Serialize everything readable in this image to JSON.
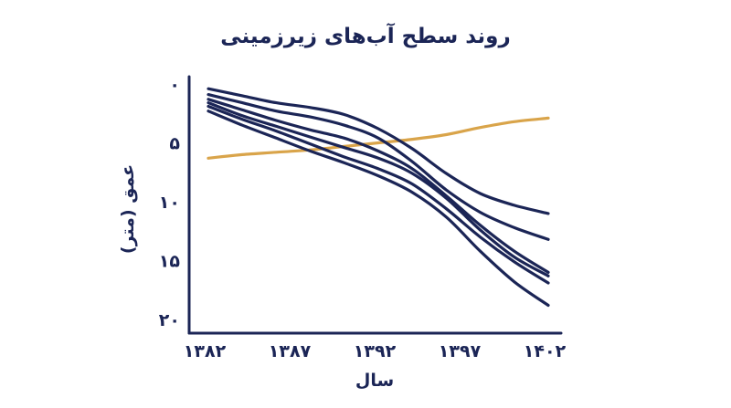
{
  "chart_data": {
    "type": "line",
    "title": "روند سطح آب‌های زیرزمینی",
    "xlabel": "سال",
    "ylabel": "عمق (متر)",
    "x_ticks": [
      {
        "value": 1382,
        "label": "۱۳۸۲"
      },
      {
        "value": 1387,
        "label": "۱۳۸۷"
      },
      {
        "value": 1392,
        "label": "۱۳۹۲"
      },
      {
        "value": 1397,
        "label": "۱۳۹۷"
      },
      {
        "value": 1402,
        "label": "۱۴۰۲"
      }
    ],
    "y_ticks": [
      {
        "value": 0,
        "label": "۰"
      },
      {
        "value": 5,
        "label": "۵"
      },
      {
        "value": 10,
        "label": "۱۰"
      },
      {
        "value": 15,
        "label": "۱۵"
      },
      {
        "value": 20,
        "label": "۲۰"
      }
    ],
    "xlim": [
      1382,
      1402
    ],
    "ylim": [
      0,
      20
    ],
    "y_inverted": true,
    "grid": false,
    "legend": "none",
    "colors": {
      "text": "#1b2556",
      "axis": "#1b2556",
      "decline_series": "#1b2556",
      "rising_series": "#d9a44a"
    },
    "series": [
      {
        "x": [
          1382,
          1384,
          1386,
          1388,
          1390,
          1392,
          1394,
          1396,
          1398,
          1400,
          1402
        ],
        "y": [
          0.4,
          1.0,
          1.6,
          2.0,
          2.6,
          3.8,
          5.5,
          7.6,
          9.3,
          10.3,
          11.0
        ]
      },
      {
        "x": [
          1382,
          1384,
          1386,
          1388,
          1390,
          1392,
          1394,
          1396,
          1398,
          1400,
          1402
        ],
        "y": [
          0.9,
          1.6,
          2.3,
          2.8,
          3.5,
          4.6,
          6.6,
          9.0,
          10.9,
          12.2,
          13.2
        ]
      },
      {
        "x": [
          1382,
          1384,
          1386,
          1388,
          1390,
          1392,
          1394,
          1396,
          1398,
          1400,
          1402
        ],
        "y": [
          1.3,
          2.2,
          3.1,
          3.9,
          4.6,
          5.7,
          7.2,
          9.5,
          12.0,
          14.2,
          16.0
        ]
      },
      {
        "x": [
          1382,
          1384,
          1386,
          1388,
          1390,
          1392,
          1394,
          1396,
          1398,
          1400,
          1402
        ],
        "y": [
          1.6,
          2.7,
          3.6,
          4.5,
          5.4,
          6.3,
          7.6,
          9.7,
          12.4,
          14.7,
          16.3
        ]
      },
      {
        "x": [
          1382,
          1384,
          1386,
          1388,
          1390,
          1392,
          1394,
          1396,
          1398,
          1400,
          1402
        ],
        "y": [
          1.9,
          3.0,
          4.0,
          5.1,
          6.2,
          7.2,
          8.5,
          10.6,
          13.0,
          15.1,
          16.9
        ]
      },
      {
        "x": [
          1382,
          1384,
          1386,
          1388,
          1390,
          1392,
          1394,
          1396,
          1398,
          1400,
          1402
        ],
        "y": [
          2.3,
          3.5,
          4.6,
          5.7,
          6.7,
          7.8,
          9.2,
          11.3,
          14.2,
          16.8,
          18.8
        ]
      },
      {
        "x": [
          1382,
          1384,
          1386,
          1388,
          1390,
          1392,
          1394,
          1396,
          1398,
          1400,
          1402
        ],
        "y": [
          6.3,
          6.0,
          5.8,
          5.6,
          5.3,
          5.0,
          4.7,
          4.3,
          3.7,
          3.2,
          2.9
        ],
        "rising": true
      }
    ]
  }
}
